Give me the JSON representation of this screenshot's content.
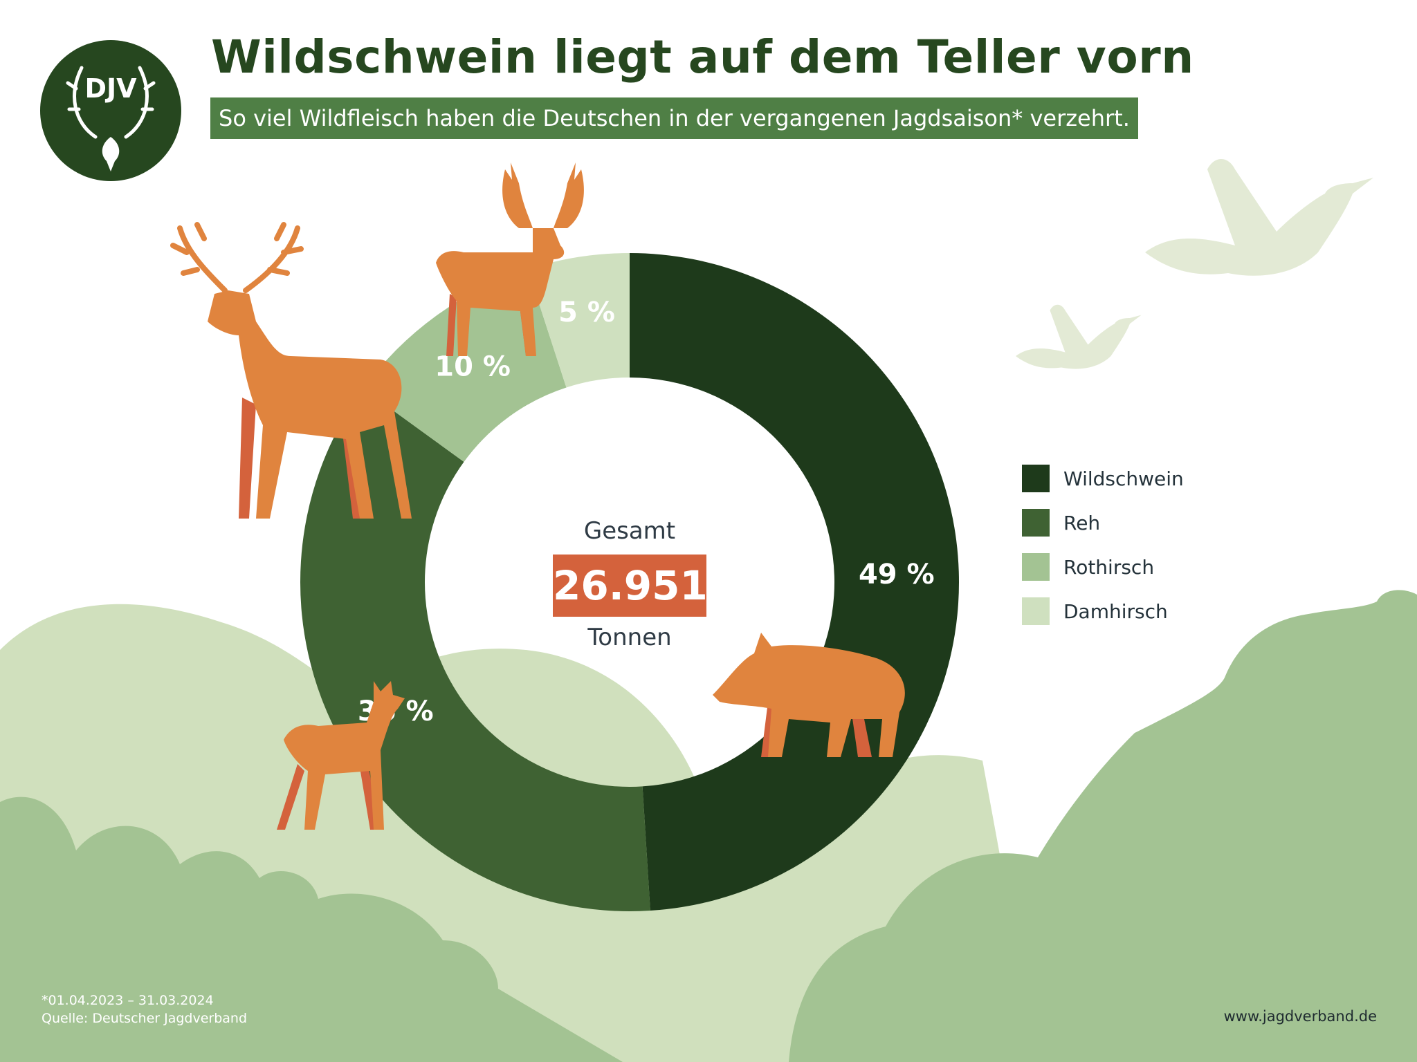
{
  "logo": {
    "text": "DJV"
  },
  "title": "Wildschwein liegt auf dem Teller vorn",
  "subtitle": "So viel Wildfleisch haben die Deutschen in der vergangenen Jagdsaison* verzehrt.",
  "center": {
    "top_label": "Gesamt",
    "total": "26.951",
    "bottom_label": "Tonnen"
  },
  "footnote": {
    "period": "*01.04.2023 – 31.03.2024",
    "source": "Quelle: Deutscher Jagdverband"
  },
  "website": "www.jagdverband.de",
  "colors": {
    "accent_orange": "#e0843e",
    "total_box": "#d4623c",
    "title_green": "#26471f"
  },
  "icons": [
    "djv-stag-logo-icon",
    "red-deer-icon",
    "fallow-deer-icon",
    "roe-deer-icon",
    "wild-boar-icon",
    "flying-duck-icon"
  ],
  "chart_data": {
    "type": "pie",
    "variant": "donut",
    "unit": "%",
    "legend_position": "right",
    "slices": [
      {
        "name": "Wildschwein",
        "value": 49,
        "label": "49 %",
        "color": "#1e3a1b"
      },
      {
        "name": "Reh",
        "value": 36,
        "label": "36 %",
        "color": "#3f6233"
      },
      {
        "name": "Rothirsch",
        "value": 10,
        "label": "10 %",
        "color": "#a3c393"
      },
      {
        "name": "Damhirsch",
        "value": 5,
        "label": "5 %",
        "color": "#cfe0bf"
      }
    ]
  }
}
